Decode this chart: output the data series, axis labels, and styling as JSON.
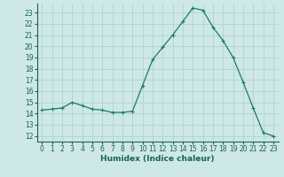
{
  "x": [
    0,
    1,
    2,
    3,
    4,
    5,
    6,
    7,
    8,
    9,
    10,
    11,
    12,
    13,
    14,
    15,
    16,
    17,
    18,
    19,
    20,
    21,
    22,
    23
  ],
  "y": [
    14.3,
    14.4,
    14.5,
    15.0,
    14.7,
    14.4,
    14.3,
    14.1,
    14.1,
    14.2,
    16.5,
    18.8,
    19.9,
    21.0,
    22.2,
    23.4,
    23.2,
    21.7,
    20.5,
    19.0,
    16.8,
    14.5,
    12.3,
    12.0
  ],
  "line_color": "#1a7a6e",
  "marker": "+",
  "marker_size": 3,
  "marker_lw": 0.8,
  "line_width": 0.9,
  "bg_color": "#cde8e5",
  "grid_color": "#aad0cc",
  "xlabel": "Humidex (Indice chaleur)",
  "xlim": [
    -0.5,
    23.5
  ],
  "ylim": [
    11.5,
    23.8
  ],
  "yticks": [
    12,
    13,
    14,
    15,
    16,
    17,
    18,
    19,
    20,
    21,
    22,
    23
  ],
  "xticks": [
    0,
    1,
    2,
    3,
    4,
    5,
    6,
    7,
    8,
    9,
    10,
    11,
    12,
    13,
    14,
    15,
    16,
    17,
    18,
    19,
    20,
    21,
    22,
    23
  ],
  "tick_label_fontsize": 5.5,
  "xlabel_fontsize": 6.5,
  "tick_color": "#1a6060",
  "label_color": "#1a1a1a"
}
